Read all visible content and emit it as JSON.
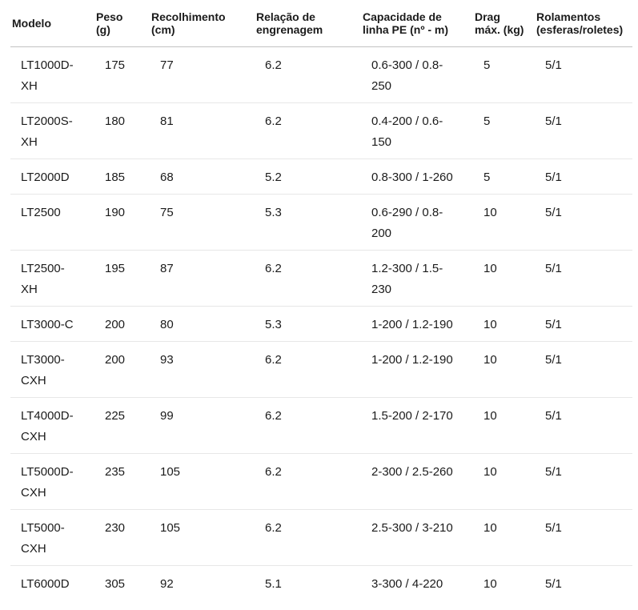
{
  "chart_data": {
    "type": "table",
    "title": "",
    "columns": [
      "Modelo",
      "Peso (g)",
      "Recolhimento (cm)",
      "Relação de engrenagem",
      "Capacidade de linha PE (nº - m)",
      "Drag máx. (kg)",
      "Rolamentos (esferas/roletes)"
    ],
    "rows": [
      [
        "LT1000D-XH",
        "175",
        "77",
        "6.2",
        "0.6-300 / 0.8-250",
        "5",
        "5/1"
      ],
      [
        "LT2000S-XH",
        "180",
        "81",
        "6.2",
        "0.4-200 / 0.6-150",
        "5",
        "5/1"
      ],
      [
        "LT2000D",
        "185",
        "68",
        "5.2",
        "0.8-300 / 1-260",
        "5",
        "5/1"
      ],
      [
        "LT2500",
        "190",
        "75",
        "5.3",
        "0.6-290 / 0.8-200",
        "10",
        "5/1"
      ],
      [
        "LT2500-XH",
        "195",
        "87",
        "6.2",
        "1.2-300 / 1.5-230",
        "10",
        "5/1"
      ],
      [
        "LT3000-C",
        "200",
        "80",
        "5.3",
        "1-200 / 1.2-190",
        "10",
        "5/1"
      ],
      [
        "LT3000-CXH",
        "200",
        "93",
        "6.2",
        "1-200 / 1.2-190",
        "10",
        "5/1"
      ],
      [
        "LT4000D-CXH",
        "225",
        "99",
        "6.2",
        "1.5-200 / 2-170",
        "10",
        "5/1"
      ],
      [
        "LT5000D-CXH",
        "235",
        "105",
        "6.2",
        "2-300 / 2.5-260",
        "10",
        "5/1"
      ],
      [
        "LT5000-CXH",
        "230",
        "105",
        "6.2",
        "2.5-300 / 3-210",
        "10",
        "5/1"
      ],
      [
        "LT6000D",
        "305",
        "92",
        "5.1",
        "3-300 / 4-220",
        "10",
        "5/1"
      ]
    ]
  }
}
